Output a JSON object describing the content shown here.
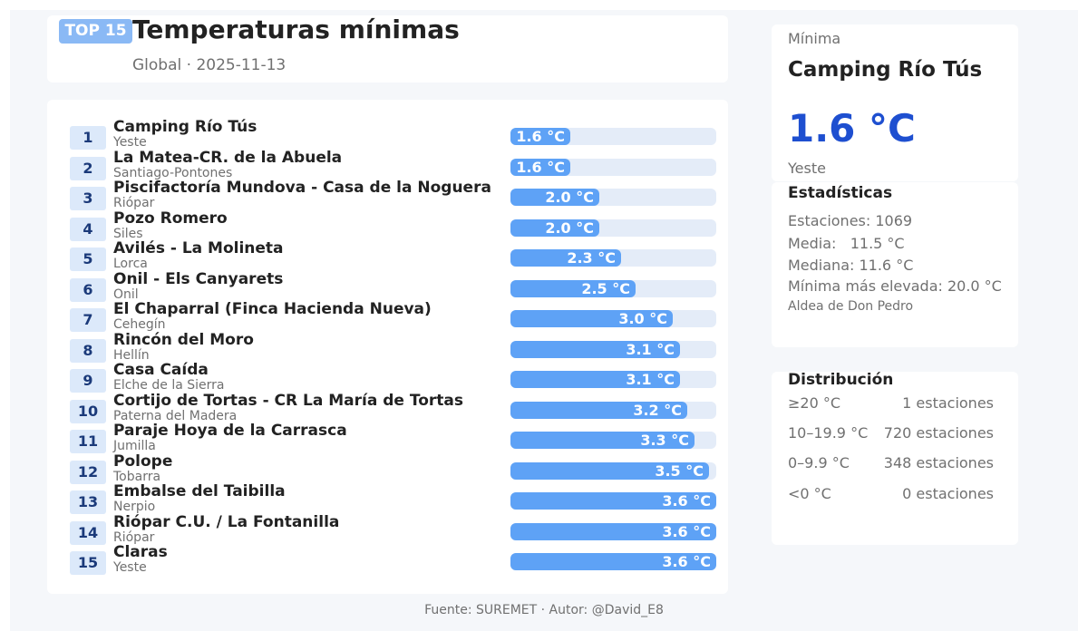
{
  "header": {
    "badge": "TOP 15",
    "title": "Temperaturas mínimas",
    "subtitle": "Global · 2025-11-13"
  },
  "chart_data": {
    "type": "bar",
    "title": "Temperaturas mínimas",
    "unit": "°C",
    "xlim": [
      0,
      3.6
    ],
    "rows": [
      {
        "rank": "1",
        "name": "Camping Río Tús",
        "location": "Yeste",
        "value": 1.6,
        "label": "1.6 °C"
      },
      {
        "rank": "2",
        "name": "La Matea-CR. de la Abuela",
        "location": "Santiago-Pontones",
        "value": 1.6,
        "label": "1.6 °C"
      },
      {
        "rank": "3",
        "name": "Piscifactoría Mundova - Casa de la Noguera",
        "location": "Riópar",
        "value": 2.0,
        "label": "2.0 °C"
      },
      {
        "rank": "4",
        "name": "Pozo Romero",
        "location": "Siles",
        "value": 2.0,
        "label": "2.0 °C"
      },
      {
        "rank": "5",
        "name": "Avilés - La Molineta",
        "location": "Lorca",
        "value": 2.3,
        "label": "2.3 °C"
      },
      {
        "rank": "6",
        "name": "Onil - Els Canyarets",
        "location": "Onil",
        "value": 2.5,
        "label": "2.5 °C"
      },
      {
        "rank": "7",
        "name": "El Chaparral (Finca Hacienda Nueva)",
        "location": "Cehegín",
        "value": 3.0,
        "label": "3.0 °C"
      },
      {
        "rank": "8",
        "name": "Rincón del Moro",
        "location": "Hellín",
        "value": 3.1,
        "label": "3.1 °C"
      },
      {
        "rank": "9",
        "name": "Casa Caída",
        "location": "Elche de la Sierra",
        "value": 3.1,
        "label": "3.1 °C"
      },
      {
        "rank": "10",
        "name": "Cortijo de Tortas - CR La María de Tortas",
        "location": "Paterna del Madera",
        "value": 3.2,
        "label": "3.2 °C"
      },
      {
        "rank": "11",
        "name": "Paraje Hoya de la Carrasca",
        "location": "Jumilla",
        "value": 3.3,
        "label": "3.3 °C"
      },
      {
        "rank": "12",
        "name": "Polope",
        "location": "Tobarra",
        "value": 3.5,
        "label": "3.5 °C"
      },
      {
        "rank": "13",
        "name": "Embalse del Taibilla",
        "location": "Nerpio",
        "value": 3.6,
        "label": "3.6 °C"
      },
      {
        "rank": "14",
        "name": "Riópar C.U. / La Fontanilla",
        "location": "Riópar",
        "value": 3.6,
        "label": "3.6 °C"
      },
      {
        "rank": "15",
        "name": "Claras",
        "location": "Yeste",
        "value": 3.6,
        "label": "3.6 °C"
      }
    ]
  },
  "minimum": {
    "label": "Mínima",
    "name": "Camping Río Tús",
    "value": "1.6 °C",
    "location": "Yeste"
  },
  "stats": {
    "title": "Estadísticas",
    "stations": "Estaciones: 1069",
    "mean": "Media:   11.5 °C",
    "median": "Mediana: 11.6 °C",
    "highest_min": "Mínima más elevada: 20.0 °C",
    "highest_min_location": "Aldea de Don Pedro"
  },
  "distribution": {
    "title": "Distribución",
    "rows": [
      {
        "range": "≥20 °C",
        "count": "1 estaciones"
      },
      {
        "range": "10–19.9 °C",
        "count": "720 estaciones"
      },
      {
        "range": "0–9.9 °C",
        "count": "348 estaciones"
      },
      {
        "range": "<0 °C",
        "count": "0 estaciones"
      }
    ]
  },
  "footer": "Fuente: SUREMET · Autor: @David_E8",
  "colors": {
    "bar": "#5ea2f6",
    "track": "#e4ecf8",
    "accent": "#1e4fd0",
    "badge": "#8ab9f5"
  }
}
